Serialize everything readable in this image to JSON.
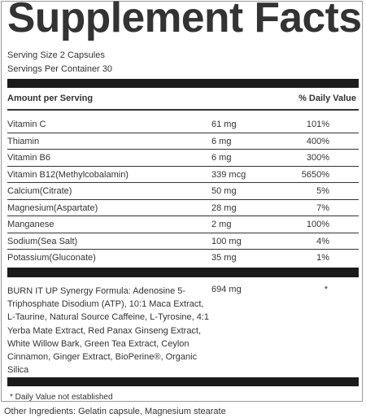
{
  "title": "Supplement Facts",
  "serving_size": "Serving Size 2 Capsules",
  "servings_per_container": "Servings Per Container 30",
  "header": {
    "amount_label": "Amount per Serving",
    "dv_label": "% Daily Value"
  },
  "nutrients": [
    {
      "name": "Vitamin C",
      "amount": "61 mg",
      "dv": "101%"
    },
    {
      "name": "Thiamin",
      "amount": "6 mg",
      "dv": "400%"
    },
    {
      "name": "Vitamin B6",
      "amount": "6 mg",
      "dv": "300%"
    },
    {
      "name": "Vitamin B12(Methylcobalamin)",
      "amount": "339 mcg",
      "dv": "5650%"
    },
    {
      "name": "Calcium(Citrate)",
      "amount": "50 mg",
      "dv": "5%"
    },
    {
      "name": "Magnesium(Aspartate)",
      "amount": "28 mg",
      "dv": "7%"
    },
    {
      "name": "Manganese",
      "amount": "2 mg",
      "dv": "100%"
    },
    {
      "name": "Sodium(Sea Salt)",
      "amount": "100 mg",
      "dv": "4%"
    },
    {
      "name": "Potassium(Gluconate)",
      "amount": "35 mg",
      "dv": "1%"
    }
  ],
  "blend": {
    "name": "BURN IT UP Synergy Formula: Adenosine 5-Triphosphate Disodium (ATP), 10:1 Maca Extract, L-Taurine, Natural Source Caffeine, L-Tyrosine, 4:1 Yerba Mate Extract, Red Panax Ginseng Extract, White Willow Bark, Green Tea Extract, Ceylon Cinnamon, Ginger Extract, BioPerine®, Organic Silica",
    "amount": "694 mg",
    "dv": "*"
  },
  "footnote": "* Daily Value not established",
  "other_ingredients": "Other Ingredients: Gelatin capsule, Magnesium stearate"
}
